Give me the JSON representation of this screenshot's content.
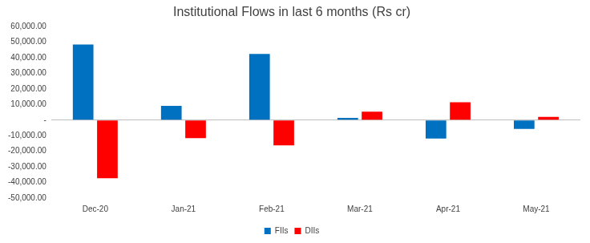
{
  "chart_data": {
    "type": "bar",
    "title": "Institutional Flows in last 6 months (Rs cr)",
    "categories": [
      "Dec-20",
      "Jan-21",
      "Feb-21",
      "Mar-21",
      "Apr-21",
      "May-21"
    ],
    "series": [
      {
        "name": "FIIs",
        "color": "#0070c0",
        "values": [
          48500,
          9200,
          42500,
          1500,
          -11800,
          -5600
        ]
      },
      {
        "name": "DIIs",
        "color": "#ff0000",
        "values": [
          -37300,
          -11600,
          -16200,
          5500,
          11500,
          2100
        ]
      }
    ],
    "ylim": [
      -50000,
      60000
    ],
    "yticks": [
      {
        "value": -50000,
        "label": "-50,000.00"
      },
      {
        "value": -40000,
        "label": "-40,000.00"
      },
      {
        "value": -30000,
        "label": "-30,000.00"
      },
      {
        "value": -20000,
        "label": "-20,000.00"
      },
      {
        "value": -10000,
        "label": "-10,000.00"
      },
      {
        "value": 0,
        "label": "-"
      },
      {
        "value": 10000,
        "label": "10,000.00"
      },
      {
        "value": 20000,
        "label": "20,000.00"
      },
      {
        "value": 30000,
        "label": "30,000.00"
      },
      {
        "value": 40000,
        "label": "40,000.00"
      },
      {
        "value": 50000,
        "label": "50,000.00"
      },
      {
        "value": 60000,
        "label": "60,000.00"
      }
    ],
    "grid": false,
    "legend": "bottom"
  }
}
